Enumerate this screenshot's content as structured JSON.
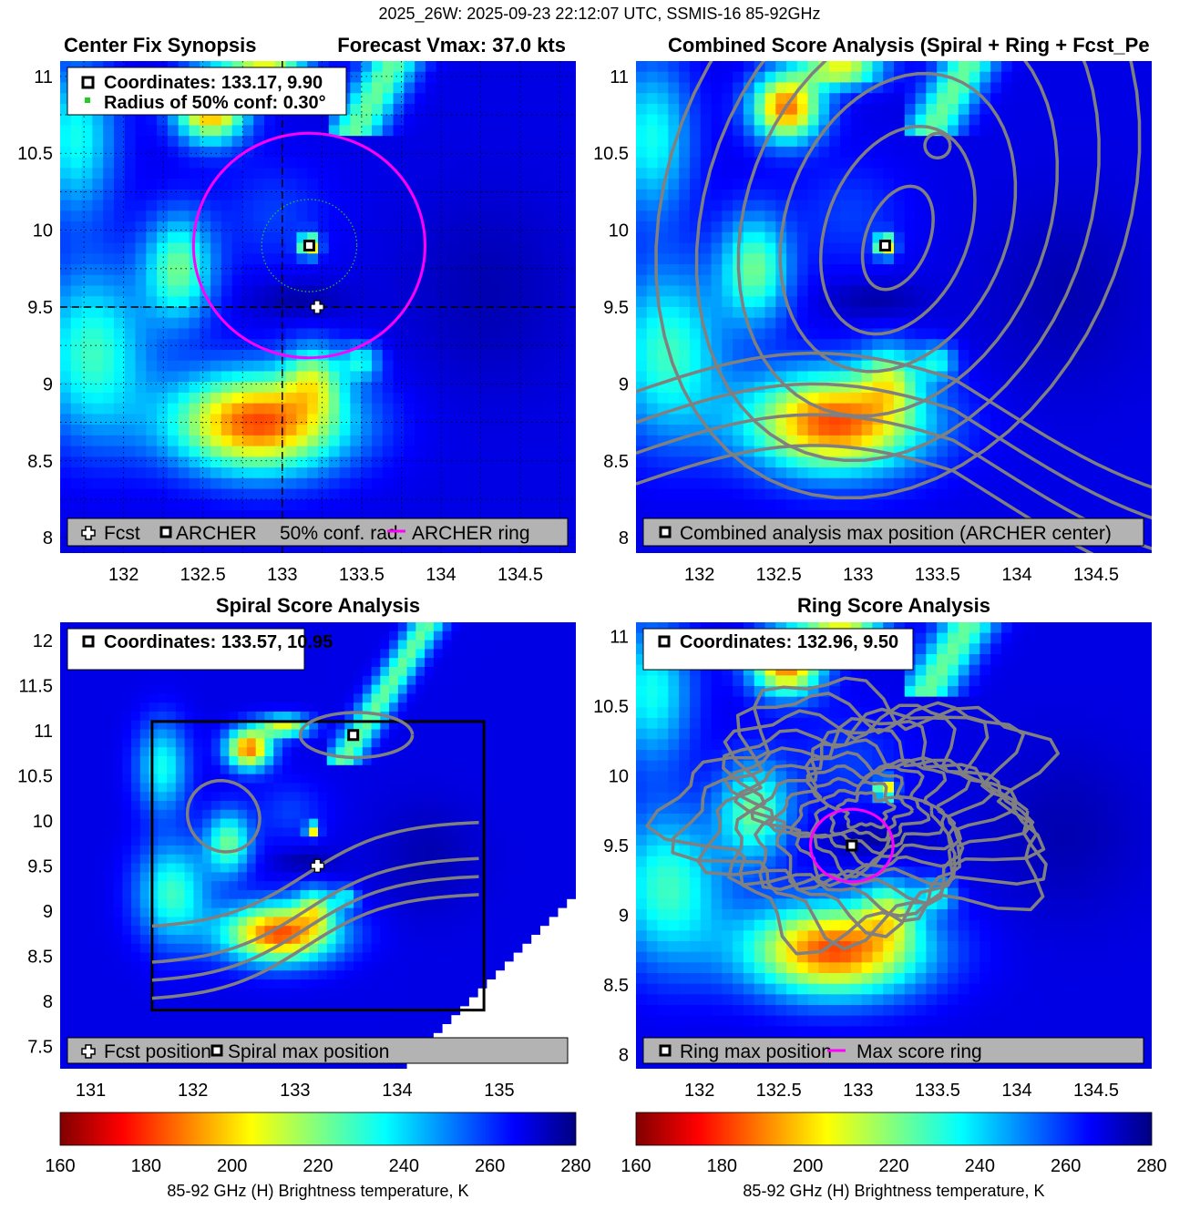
{
  "suptitle": "2025_26W: 2025-09-23 22:12:07 UTC, SSMIS-16 85-92GHz",
  "colors": {
    "ring": "#ff00ff",
    "contour": "#808080",
    "legend_bg": "#b3b3b3",
    "conf_dot": "#22cc22"
  },
  "colorbar": {
    "colormap": "jet-reversed",
    "ticks": [
      "160",
      "180",
      "200",
      "220",
      "240",
      "260",
      "280"
    ],
    "label": "85-92 GHz (H) Brightness temperature, K",
    "range": [
      160,
      280
    ]
  },
  "chart_data": [
    {
      "type": "heatmap",
      "id": "center_fix",
      "title_left": "Center Fix Synopsis",
      "title_right": "Forecast Vmax: 37.0 kts",
      "xlim": [
        131.6,
        134.85
      ],
      "ylim": [
        7.9,
        11.1
      ],
      "xticks": [
        "132",
        "132.5",
        "133",
        "133.5",
        "134",
        "134.5"
      ],
      "yticks": [
        "8",
        "8.5",
        "9",
        "9.5",
        "10",
        "10.5",
        "11"
      ],
      "grid": true,
      "info": [
        "Coordinates: 133.17, 9.90",
        "Radius of 50% conf: 0.30°"
      ],
      "legend": [
        "Fcst",
        "ARCHER",
        "50% conf. rad.",
        "ARCHER ring"
      ],
      "archer_center": [
        133.17,
        9.9
      ],
      "forecast": [
        133.22,
        9.5
      ],
      "ring_center": [
        133.17,
        9.9
      ],
      "ring_radius_deg": 0.73,
      "conf_radius_deg": 0.3,
      "crosshair": [
        133.0,
        9.5
      ]
    },
    {
      "type": "heatmap",
      "id": "combined",
      "title": "Combined Score Analysis (Spiral + Ring + Fcst_Pe",
      "xlim": [
        131.6,
        134.85
      ],
      "ylim": [
        7.9,
        11.1
      ],
      "xticks": [
        "132",
        "132.5",
        "133",
        "133.5",
        "134",
        "134.5"
      ],
      "yticks": [
        "8",
        "8.5",
        "9",
        "9.5",
        "10",
        "10.5",
        "11"
      ],
      "legend": [
        "Combined analysis max position (ARCHER center)"
      ],
      "max_position": [
        133.17,
        9.9
      ],
      "contours": true
    },
    {
      "type": "heatmap",
      "id": "spiral",
      "title": "Spiral Score Analysis",
      "xlim": [
        130.7,
        135.75
      ],
      "ylim": [
        7.25,
        12.2
      ],
      "xticks": [
        "131",
        "132",
        "133",
        "134",
        "135"
      ],
      "yticks": [
        "7.5",
        "8",
        "8.5",
        "9",
        "9.5",
        "10",
        "10.5",
        "11",
        "11.5",
        "12"
      ],
      "info": [
        "Coordinates: 133.57, 10.95"
      ],
      "legend": [
        "Fcst position",
        "Spiral max position"
      ],
      "max_position": [
        133.57,
        10.95
      ],
      "forecast": [
        133.22,
        9.5
      ],
      "box": {
        "x": [
          131.6,
          134.85
        ],
        "y": [
          7.9,
          11.1
        ]
      },
      "contours": true
    },
    {
      "type": "heatmap",
      "id": "ring",
      "title": "Ring Score Analysis",
      "xlim": [
        131.6,
        134.85
      ],
      "ylim": [
        7.9,
        11.1
      ],
      "xticks": [
        "132",
        "132.5",
        "133",
        "133.5",
        "134",
        "134.5"
      ],
      "yticks": [
        "8",
        "8.5",
        "9",
        "9.5",
        "10",
        "10.5",
        "11"
      ],
      "info": [
        "Coordinates: 132.96, 9.50"
      ],
      "legend": [
        "Ring max position",
        "Max score ring"
      ],
      "max_position": [
        132.96,
        9.5
      ],
      "ring_radius_deg": 0.26,
      "contours": true
    }
  ]
}
